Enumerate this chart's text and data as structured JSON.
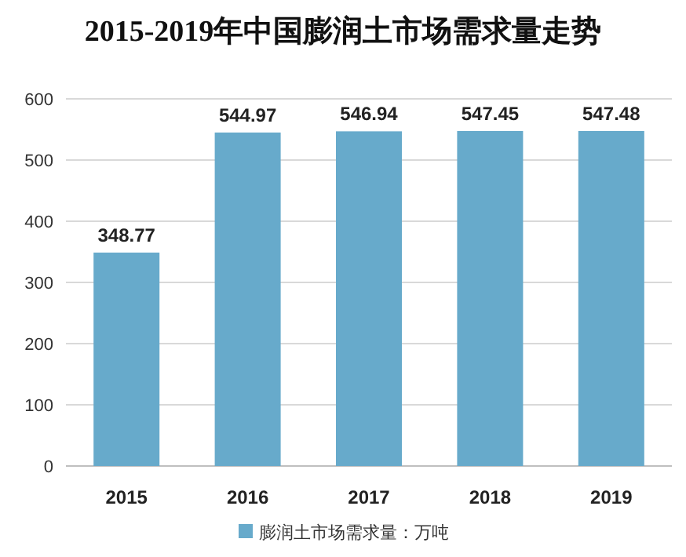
{
  "chart_data": {
    "type": "bar",
    "title": "2015-2019年中国膨润土市场需求量走势",
    "categories": [
      "2015",
      "2016",
      "2017",
      "2018",
      "2019"
    ],
    "series": [
      {
        "name": "膨润土市场需求量：万吨",
        "color": "#67aacb",
        "values": [
          348.77,
          544.97,
          546.94,
          547.45,
          547.48
        ]
      }
    ],
    "ylim": [
      0,
      600
    ],
    "yticks": [
      0,
      100,
      200,
      300,
      400,
      500,
      600
    ],
    "grid": "y",
    "legend": "bottom",
    "data_labels": true
  }
}
